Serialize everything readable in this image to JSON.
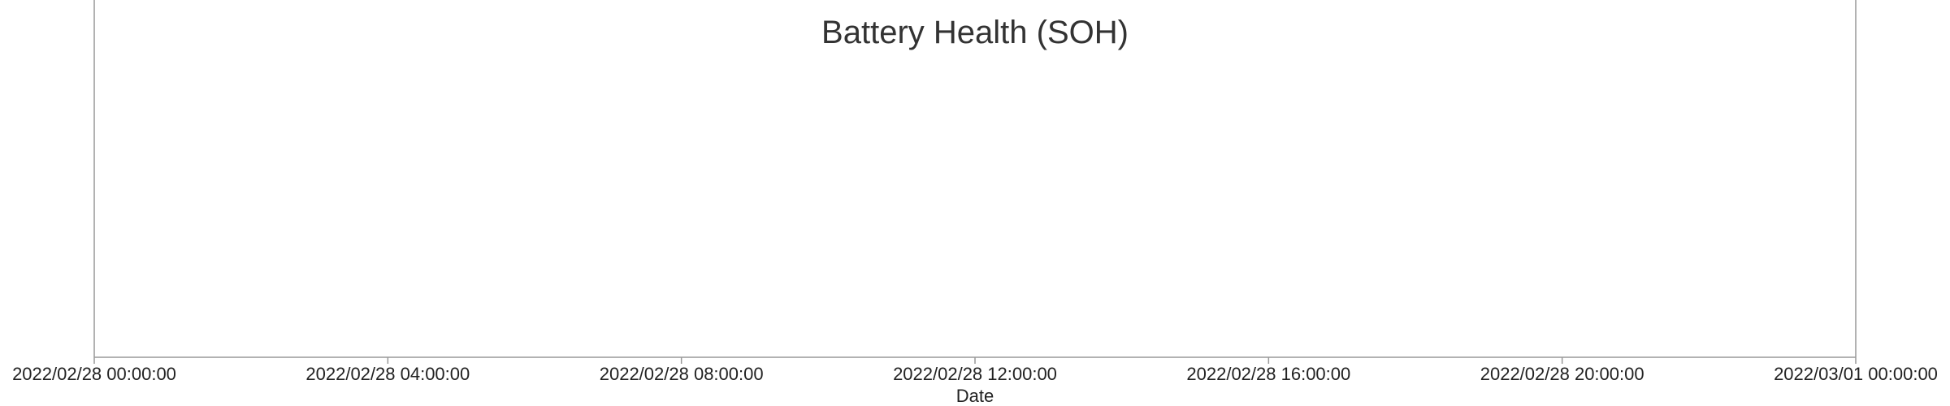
{
  "chart_data": {
    "type": "line",
    "title": "Battery Health (SOH)",
    "xlabel": "Date",
    "ylabel": "",
    "x_ticks": [
      "2022/02/28 00:00:00",
      "2022/02/28 04:00:00",
      "2022/02/28 08:00:00",
      "2022/02/28 12:00:00",
      "2022/02/28 16:00:00",
      "2022/02/28 20:00:00",
      "2022/03/01 00:00:00"
    ],
    "xlim": [
      "2022/02/28 00:00:00",
      "2022/03/01 00:00:00"
    ],
    "series": [],
    "grid": false,
    "legend": "none",
    "colors": {
      "axis": "#999999",
      "text": "#222222",
      "title": "#333333"
    }
  }
}
